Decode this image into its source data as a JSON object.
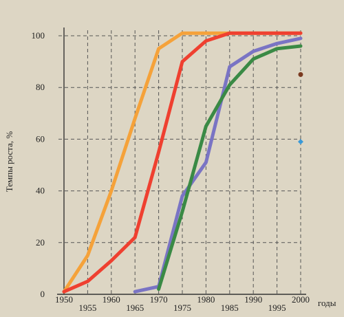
{
  "chart_data": {
    "type": "line",
    "title": "",
    "xlabel": "годы",
    "ylabel": "Темпы роста, %",
    "xlim": [
      1950,
      2000
    ],
    "ylim": [
      0,
      100
    ],
    "grid": true,
    "x_ticks": [
      "1950",
      "1955",
      "1960",
      "1965",
      "1970",
      "1975",
      "1980",
      "1985",
      "1990",
      "1995",
      "2000"
    ],
    "y_ticks": [
      "0",
      "20",
      "40",
      "60",
      "80",
      "100"
    ],
    "series": [
      {
        "color": "#f5a23a",
        "x": [
          1950,
          1955,
          1960,
          1965,
          1970,
          1975,
          1980,
          1985,
          1990,
          1995,
          2000
        ],
        "y": [
          1,
          15,
          40,
          68,
          95,
          101,
          101,
          101,
          101,
          101,
          101
        ]
      },
      {
        "color": "#ef4030",
        "x": [
          1950,
          1955,
          1960,
          1965,
          1970,
          1975,
          1980,
          1985,
          1990,
          1995,
          2000
        ],
        "y": [
          1,
          5,
          13,
          22,
          55,
          90,
          98,
          101,
          101,
          101,
          101
        ]
      },
      {
        "color": "#7a74c4",
        "x": [
          1965,
          1970,
          1975,
          1980,
          1985,
          1990,
          1995,
          2000
        ],
        "y": [
          1,
          3,
          38,
          51,
          88,
          94,
          97,
          99
        ]
      },
      {
        "color": "#3a8a45",
        "x": [
          1970,
          1975,
          1980,
          1985,
          1990,
          1995,
          2000
        ],
        "y": [
          2,
          32,
          65,
          81,
          91,
          95,
          96
        ]
      }
    ],
    "markers": [
      {
        "x": 2000,
        "y": 85,
        "color": "#7a3a20",
        "shape": "circle"
      },
      {
        "x": 2000,
        "y": 59,
        "color": "#3a9ad8",
        "shape": "diamond"
      }
    ]
  }
}
